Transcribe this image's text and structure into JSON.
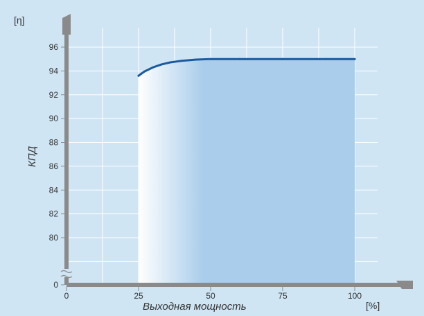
{
  "chart_data": {
    "type": "line",
    "title": "",
    "xlabel": "Выходная мощность",
    "ylabel": "КПД",
    "x_unit": "[%]",
    "y_unit": "[η]",
    "xlim": [
      0,
      100
    ],
    "x_ticks": [
      0,
      25,
      50,
      75,
      100
    ],
    "y_ticks": [
      0,
      80,
      82,
      84,
      86,
      88,
      90,
      92,
      94,
      96
    ],
    "y_axis_break": true,
    "y_visible_range": [
      78,
      97
    ],
    "grid": true,
    "shaded_region": [
      25,
      100
    ],
    "series": [
      {
        "x": [
          25,
          27,
          30,
          33,
          36,
          40,
          45,
          50,
          60,
          75,
          90,
          100
        ],
        "values": [
          93.6,
          93.95,
          94.3,
          94.55,
          94.72,
          94.85,
          94.95,
          95.0,
          95.0,
          95.0,
          95.0,
          95.0
        ]
      }
    ],
    "colors": {
      "background": "#cfe5f4",
      "line": "#1a5aa0",
      "axis": "#8a8a8a",
      "shade": "#a9cdeb"
    }
  }
}
